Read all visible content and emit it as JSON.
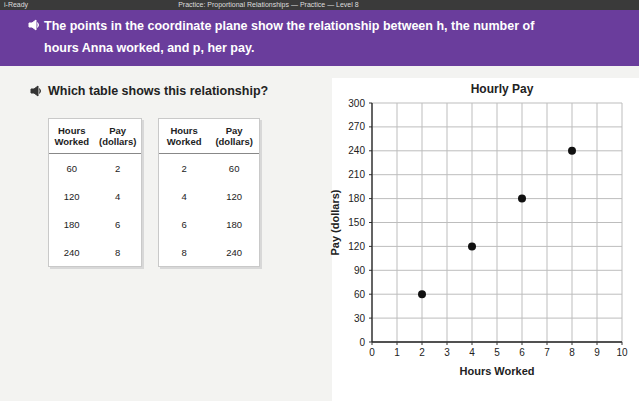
{
  "header": {
    "brand": "i-Ready",
    "title": "Practice: Proportional Relationships — Practice — Level 8"
  },
  "prompt": "The points in the coordinate plane show the relationship between h, the number of hours Anna worked, and p, her pay.",
  "question": "Which table shows this relationship?",
  "tables": [
    {
      "columns": [
        "Hours Worked",
        "Pay (dollars)"
      ],
      "rows": [
        [
          60,
          2
        ],
        [
          120,
          4
        ],
        [
          180,
          6
        ],
        [
          240,
          8
        ]
      ]
    },
    {
      "columns": [
        "Hours Worked",
        "Pay (dollars)"
      ],
      "rows": [
        [
          2,
          60
        ],
        [
          4,
          120
        ],
        [
          6,
          180
        ],
        [
          8,
          240
        ]
      ]
    }
  ],
  "chart_data": {
    "type": "scatter",
    "title": "Hourly Pay",
    "x_label": "Hours Worked",
    "y_label": "Pay (dollars)",
    "x": [
      2,
      4,
      6,
      8
    ],
    "values": [
      60,
      120,
      180,
      240
    ],
    "color": "#111111",
    "marker": "circle",
    "xlim": [
      0,
      10
    ],
    "ylim": [
      0,
      300
    ],
    "xticks": [
      0,
      1,
      2,
      3,
      4,
      5,
      6,
      7,
      8,
      9,
      10
    ],
    "yticks": [
      0,
      30,
      60,
      90,
      120,
      150,
      180,
      210,
      240,
      270,
      300
    ],
    "grid": true
  }
}
